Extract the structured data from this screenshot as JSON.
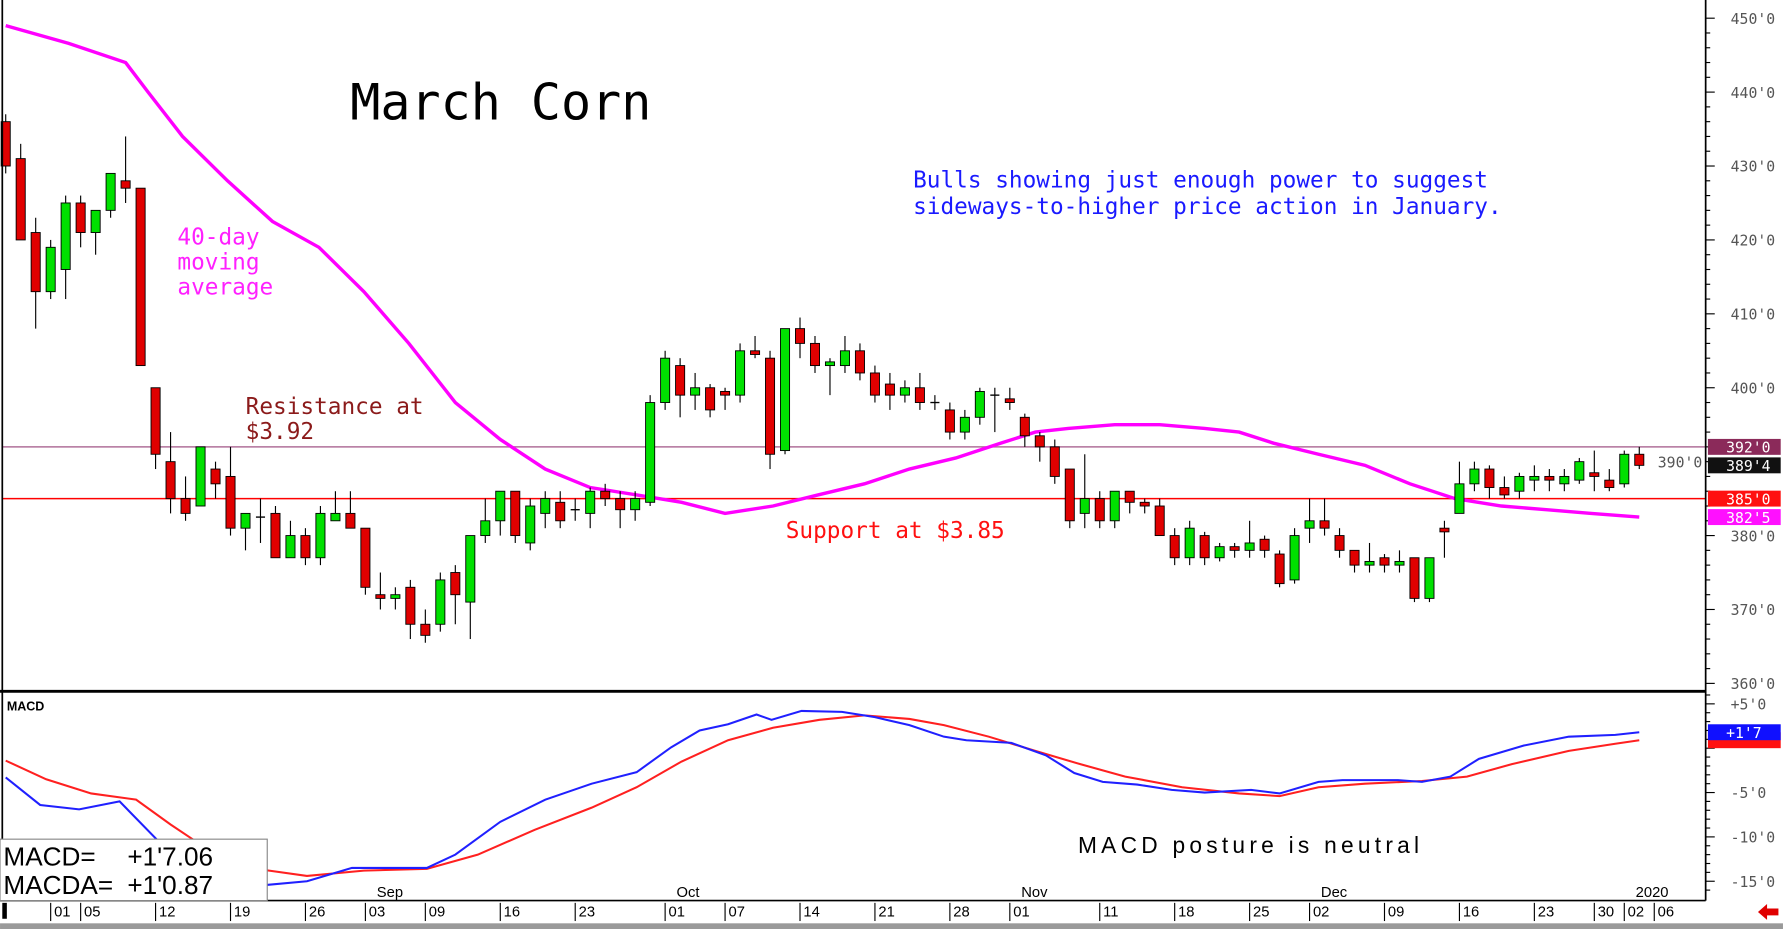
{
  "chart_data": {
    "type": "candlestick",
    "title": "March Corn",
    "annotations": {
      "outlook_line1": "Bulls showing just enough power to suggest",
      "outlook_line2": "sideways-to-higher price action in January.",
      "ma_label_line1": "40-day",
      "ma_label_line2": "moving",
      "ma_label_line3": "average",
      "resistance_line1": "Resistance at",
      "resistance_line2": "$3.92",
      "support": "Support at $3.85",
      "macd_comment": "MACD posture is neutral"
    },
    "colors": {
      "up": "#00e000",
      "down": "#e00000",
      "ma": "#ff00ff",
      "resistance": "#b0709a",
      "support": "#ff0000",
      "macd": "#2020ff",
      "macda": "#ff2020",
      "title": "#000000",
      "outlook": "#1a1aff",
      "resistance_text": "#8b1a1a"
    },
    "price_axis": {
      "range": [
        360,
        450
      ],
      "ticks": [
        "450'0",
        "440'0",
        "430'0",
        "420'0",
        "410'0",
        "400'0",
        "390'0",
        "380'0",
        "370'0",
        "360'0"
      ],
      "tick_values": [
        450,
        440,
        430,
        420,
        410,
        400,
        390,
        380,
        370,
        360
      ],
      "markers": [
        {
          "label": "392'0",
          "value": 392,
          "color": "#8b2a5a"
        },
        {
          "label": "389'4",
          "value": 389.5,
          "color": "#111111"
        },
        {
          "label": "385'0",
          "value": 385,
          "color": "#ff1010"
        },
        {
          "label": "382'5",
          "value": 382.5,
          "color": "#ff10ff"
        }
      ]
    },
    "levels": {
      "resistance": 392,
      "support": 385
    },
    "candles_ohlc": [
      [
        436,
        437,
        429,
        430
      ],
      [
        431,
        433,
        420,
        420
      ],
      [
        421,
        423,
        408,
        413
      ],
      [
        413,
        420,
        412,
        419
      ],
      [
        416,
        426,
        412,
        425
      ],
      [
        425,
        426,
        419,
        421
      ],
      [
        421,
        424,
        418,
        424
      ],
      [
        424,
        429,
        423,
        429
      ],
      [
        428,
        434,
        425,
        427
      ],
      [
        427,
        427,
        403,
        403
      ],
      [
        400,
        400,
        389,
        391
      ],
      [
        390,
        394,
        383,
        385
      ],
      [
        385,
        388,
        382,
        383
      ],
      [
        384,
        392,
        384,
        392
      ],
      [
        389,
        390,
        385,
        387
      ],
      [
        388,
        392,
        380,
        381
      ],
      [
        381,
        383,
        378,
        383
      ],
      [
        382.5,
        385,
        379,
        382.5
      ],
      [
        383,
        384,
        377,
        377
      ],
      [
        377,
        382,
        377,
        380
      ],
      [
        380,
        381,
        376,
        377
      ],
      [
        377,
        384,
        376,
        383
      ],
      [
        382,
        386,
        382,
        383
      ],
      [
        383,
        386,
        381,
        381
      ],
      [
        381,
        381,
        372,
        373
      ],
      [
        372,
        375,
        370,
        371.5
      ],
      [
        371.5,
        373,
        370,
        372
      ],
      [
        373,
        374,
        366,
        368
      ],
      [
        368,
        370,
        365.5,
        366.5
      ],
      [
        368,
        375,
        367,
        374
      ],
      [
        375,
        376,
        368,
        372
      ],
      [
        371,
        380,
        366,
        380
      ],
      [
        380,
        385,
        379,
        382
      ],
      [
        382,
        386,
        380,
        386
      ],
      [
        386,
        386,
        379,
        380
      ],
      [
        379,
        385,
        378,
        384
      ],
      [
        383,
        386,
        381,
        385
      ],
      [
        384.5,
        386,
        381,
        382
      ],
      [
        383.5,
        385,
        382,
        383.5
      ],
      [
        383,
        386.5,
        381,
        386
      ],
      [
        386,
        387,
        384,
        385
      ],
      [
        385,
        386,
        381,
        383.5
      ],
      [
        383.5,
        386,
        382,
        385
      ],
      [
        384.5,
        399,
        384,
        398
      ],
      [
        398,
        405,
        397,
        404
      ],
      [
        403,
        404,
        396,
        399
      ],
      [
        399,
        402,
        397,
        400
      ],
      [
        400,
        400.5,
        396,
        397
      ],
      [
        399.5,
        400,
        397,
        399
      ],
      [
        399,
        406,
        398,
        405
      ],
      [
        405,
        407,
        404,
        404.5
      ],
      [
        404,
        405,
        389,
        391
      ],
      [
        391.5,
        408,
        391,
        408
      ],
      [
        408,
        409.5,
        404,
        406
      ],
      [
        406,
        407,
        402,
        403
      ],
      [
        403,
        404,
        399,
        403.5
      ],
      [
        403,
        407,
        402,
        405
      ],
      [
        405,
        406,
        401,
        402
      ],
      [
        402,
        403,
        398,
        399
      ],
      [
        400.5,
        402,
        397,
        399
      ],
      [
        399,
        401,
        398,
        400
      ],
      [
        400,
        402,
        397,
        398
      ],
      [
        398,
        399,
        397,
        398
      ],
      [
        397,
        398,
        393,
        394
      ],
      [
        394,
        397,
        393,
        396
      ],
      [
        396,
        400,
        395,
        399.5
      ],
      [
        399,
        400,
        394,
        399
      ],
      [
        398.5,
        400,
        397,
        398
      ],
      [
        396,
        396.5,
        392,
        393.5
      ],
      [
        393.5,
        394,
        390,
        392
      ],
      [
        392,
        393,
        387,
        388
      ],
      [
        389,
        389,
        381,
        382
      ],
      [
        383,
        391,
        381,
        385
      ],
      [
        385,
        386,
        381,
        382
      ],
      [
        382,
        386,
        381,
        386
      ],
      [
        386,
        386,
        383,
        384.5
      ],
      [
        384.5,
        385,
        383,
        384
      ],
      [
        384,
        385,
        380,
        380
      ],
      [
        380,
        381,
        376,
        377
      ],
      [
        377,
        382,
        376,
        381
      ],
      [
        380,
        380.5,
        376,
        377
      ],
      [
        377,
        379,
        376.5,
        378.5
      ],
      [
        378.5,
        379,
        377,
        378
      ],
      [
        378,
        382,
        377,
        379
      ],
      [
        379.5,
        380,
        377,
        378
      ],
      [
        377.5,
        378,
        373,
        373.5
      ],
      [
        374,
        381,
        373.5,
        380
      ],
      [
        381,
        385,
        379,
        382
      ],
      [
        382,
        385,
        380,
        381
      ],
      [
        380,
        381,
        377,
        378
      ],
      [
        378,
        378,
        375,
        376
      ],
      [
        376,
        379,
        375,
        376.5
      ],
      [
        377,
        377.5,
        375,
        376
      ],
      [
        376,
        378,
        375,
        376.5
      ],
      [
        377,
        377,
        371,
        371.5
      ],
      [
        371.5,
        377,
        371,
        377
      ],
      [
        381,
        382,
        377,
        380.5
      ],
      [
        383,
        390,
        383,
        387
      ],
      [
        387,
        390,
        386,
        389
      ],
      [
        389,
        389.5,
        385,
        386.5
      ],
      [
        386.5,
        388,
        385,
        385.5
      ],
      [
        386,
        388.5,
        385,
        388
      ],
      [
        387.5,
        389.5,
        386,
        388
      ],
      [
        388,
        389,
        386,
        387.5
      ],
      [
        387,
        389,
        386,
        388
      ],
      [
        387.5,
        390.5,
        387,
        390
      ],
      [
        388.5,
        391.5,
        386,
        388
      ],
      [
        387.5,
        389,
        386,
        386.5
      ],
      [
        387,
        391.5,
        386.5,
        391
      ],
      [
        391,
        392,
        389,
        389.5
      ]
    ],
    "ma40": [
      [
        0,
        449
      ],
      [
        4.2,
        446.6
      ],
      [
        8,
        444
      ],
      [
        9.5,
        440
      ],
      [
        11.8,
        434
      ],
      [
        14.8,
        428
      ],
      [
        17.8,
        422.5
      ],
      [
        20.9,
        419
      ],
      [
        23.9,
        413
      ],
      [
        26.9,
        406
      ],
      [
        30,
        398
      ],
      [
        33,
        393
      ],
      [
        36,
        389
      ],
      [
        39,
        386.5
      ],
      [
        42.1,
        385.5
      ],
      [
        45.1,
        384.5
      ],
      [
        48,
        383
      ],
      [
        51.2,
        384
      ],
      [
        54.2,
        385.5
      ],
      [
        57.3,
        387
      ],
      [
        60.3,
        389
      ],
      [
        63.4,
        390.5
      ],
      [
        66.4,
        392.5
      ],
      [
        68.7,
        394
      ],
      [
        70.9,
        394.5
      ],
      [
        74,
        395
      ],
      [
        77,
        395
      ],
      [
        80,
        394.5
      ],
      [
        82.3,
        394
      ],
      [
        84.6,
        392.5
      ],
      [
        87.6,
        391
      ],
      [
        90.7,
        389.5
      ],
      [
        93.7,
        387
      ],
      [
        96.7,
        385
      ],
      [
        99.8,
        384
      ],
      [
        102.8,
        383.5
      ],
      [
        105.8,
        383
      ],
      [
        109,
        382.5
      ]
    ],
    "macd_axis": {
      "range": [
        -16,
        6
      ],
      "ticks": [
        "+5'0",
        "-5'0",
        "-10'0",
        "-15'0"
      ],
      "tick_values": [
        5,
        -5,
        -10,
        -15
      ],
      "markers": [
        {
          "label": "+1'7",
          "value": 1.8,
          "color": "#1010ff"
        },
        {
          "label": "",
          "value": 0.9,
          "color": "#ff1010"
        }
      ]
    },
    "panel_label": "MACD",
    "legend": {
      "macd_label": "MACD=",
      "macd_value": "+1'7.06",
      "macda_label": "MACDA=",
      "macda_value": "+1'0.87"
    },
    "macd": [
      [
        0,
        -3.3
      ],
      [
        2.3,
        -6.4
      ],
      [
        4.9,
        -6.9
      ],
      [
        7.6,
        -6
      ],
      [
        10.2,
        -10.5
      ],
      [
        14.8,
        -15.4
      ],
      [
        17.5,
        -15.4
      ],
      [
        20.1,
        -15
      ],
      [
        23.1,
        -13.5
      ],
      [
        28.1,
        -13.5
      ],
      [
        30,
        -12
      ],
      [
        33,
        -8.3
      ],
      [
        36,
        -5.8
      ],
      [
        39.1,
        -4
      ],
      [
        42.1,
        -2.7
      ],
      [
        44.4,
        0.1
      ],
      [
        46.3,
        2
      ],
      [
        48.2,
        2.7
      ],
      [
        50.1,
        3.8
      ],
      [
        51.1,
        3.2
      ],
      [
        53.1,
        4.2
      ],
      [
        55.8,
        4.1
      ],
      [
        58,
        3.5
      ],
      [
        60.3,
        2.6
      ],
      [
        62.6,
        1.3
      ],
      [
        64.1,
        0.9
      ],
      [
        67.1,
        0.6
      ],
      [
        69.4,
        -0.8
      ],
      [
        71.3,
        -2.8
      ],
      [
        73.2,
        -3.8
      ],
      [
        75.5,
        -4.1
      ],
      [
        77.8,
        -4.7
      ],
      [
        80,
        -5
      ],
      [
        83.1,
        -4.7
      ],
      [
        85,
        -5.1
      ],
      [
        87.6,
        -3.8
      ],
      [
        89.2,
        -3.6
      ],
      [
        92.9,
        -3.6
      ],
      [
        94.5,
        -3.8
      ],
      [
        96.4,
        -3.2
      ],
      [
        98.3,
        -1.2
      ],
      [
        101.3,
        0.3
      ],
      [
        104.3,
        1.3
      ],
      [
        107.4,
        1.5
      ],
      [
        109,
        1.8
      ]
    ],
    "macda": [
      [
        0,
        -1.4
      ],
      [
        2.7,
        -3.5
      ],
      [
        5.7,
        -5.1
      ],
      [
        8.7,
        -5.8
      ],
      [
        11,
        -8.6
      ],
      [
        13.3,
        -11.2
      ],
      [
        16.3,
        -13.5
      ],
      [
        20.1,
        -14.4
      ],
      [
        23.9,
        -13.8
      ],
      [
        28.1,
        -13.6
      ],
      [
        31.5,
        -12
      ],
      [
        35.3,
        -9.2
      ],
      [
        39.1,
        -6.7
      ],
      [
        42.1,
        -4.4
      ],
      [
        45.1,
        -1.5
      ],
      [
        48.2,
        0.9
      ],
      [
        51.2,
        2.3
      ],
      [
        54.3,
        3.2
      ],
      [
        57.3,
        3.7
      ],
      [
        60.3,
        3.3
      ],
      [
        62.6,
        2.6
      ],
      [
        65.6,
        1.3
      ],
      [
        68.7,
        -0.3
      ],
      [
        71.7,
        -1.8
      ],
      [
        74.7,
        -3.2
      ],
      [
        78.5,
        -4.4
      ],
      [
        82.3,
        -5.1
      ],
      [
        85,
        -5.4
      ],
      [
        87.6,
        -4.4
      ],
      [
        90.7,
        -4
      ],
      [
        94.5,
        -3.7
      ],
      [
        97.5,
        -3.2
      ],
      [
        100.5,
        -1.8
      ],
      [
        104.3,
        -0.3
      ],
      [
        107.4,
        0.5
      ],
      [
        109,
        0.9
      ]
    ],
    "x_ticks": [
      {
        "label": "01",
        "bar": 3
      },
      {
        "label": "05",
        "bar": 5
      },
      {
        "label": "12",
        "bar": 10
      },
      {
        "label": "19",
        "bar": 15
      },
      {
        "label": "26",
        "bar": 20
      },
      {
        "label": "03",
        "bar": 24
      },
      {
        "label": "09",
        "bar": 28
      },
      {
        "label": "16",
        "bar": 33
      },
      {
        "label": "23",
        "bar": 38
      },
      {
        "label": "01",
        "bar": 44
      },
      {
        "label": "07",
        "bar": 48
      },
      {
        "label": "14",
        "bar": 53
      },
      {
        "label": "21",
        "bar": 58
      },
      {
        "label": "28",
        "bar": 63
      },
      {
        "label": "01",
        "bar": 67
      },
      {
        "label": "11",
        "bar": 73
      },
      {
        "label": "18",
        "bar": 78
      },
      {
        "label": "25",
        "bar": 83
      },
      {
        "label": "02",
        "bar": 87
      },
      {
        "label": "09",
        "bar": 92
      },
      {
        "label": "16",
        "bar": 97
      },
      {
        "label": "23",
        "bar": 102
      },
      {
        "label": "30",
        "bar": 106
      },
      {
        "label": "02",
        "bar": 108
      },
      {
        "label": "06",
        "bar": 110
      }
    ],
    "month_labels": [
      {
        "label": "Sep",
        "bar": 24
      },
      {
        "label": "Oct",
        "bar": 44
      },
      {
        "label": "Nov",
        "bar": 67
      },
      {
        "label": "Dec",
        "bar": 87
      },
      {
        "label": "2020",
        "bar": 108
      }
    ],
    "grid": false
  }
}
